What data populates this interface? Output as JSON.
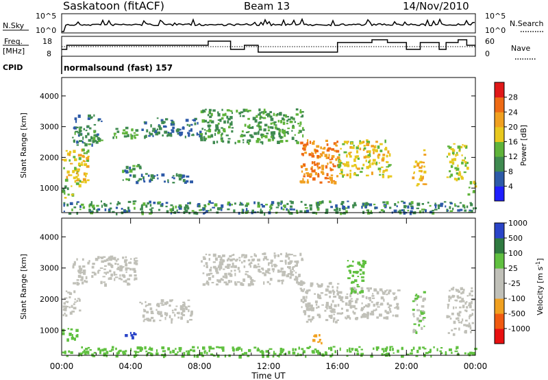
{
  "header": {
    "station": "Saskatoon (fitACF)",
    "beam": "Beam 13",
    "date": "14/Nov/2010"
  },
  "noise_panel": {
    "left_label": "N.Sky",
    "left_ticks": [
      "10^5",
      "10^0"
    ],
    "right_label": "N.Search",
    "right_ticks": [
      "10^5",
      "10^0"
    ]
  },
  "freq_panel": {
    "left_label_line1": "Freq.",
    "left_label_line2": "[MHz]",
    "left_ticks": [
      "18",
      "8"
    ],
    "right_label": "Nave",
    "right_ticks": [
      "60",
      "0"
    ]
  },
  "cpid": {
    "label": "CPID",
    "value": "normalsound (fast) 157"
  },
  "colors": {
    "power_scale": [
      "#1e1eff",
      "#2d5aa8",
      "#3f8a50",
      "#5fb33a",
      "#e8c81e",
      "#f0a020",
      "#ee6a14",
      "#e01818"
    ],
    "velocity_scale": [
      "#e81010",
      "#f05a10",
      "#f0a020",
      "#c0c0b8",
      "#c0c0b8",
      "#60c040",
      "#2f7a40",
      "#2a44c8"
    ]
  },
  "chart_data": [
    {
      "type": "heatmap",
      "name": "power",
      "ylabel": "Slant Range [km]",
      "yticks": [
        "1000",
        "2000",
        "3000",
        "4000"
      ],
      "ylim": [
        200,
        4600
      ],
      "xlim": [
        0,
        24
      ],
      "colorbar_label": "Power [dB]",
      "colorbar_ticks": [
        "4",
        "8",
        "12",
        "16",
        "20",
        "24",
        "28"
      ],
      "echo_bands": [
        {
          "t0": 0.0,
          "t1": 1.5,
          "r0": 1100,
          "r1": 2300,
          "value": 18
        },
        {
          "t0": 0.0,
          "t1": 0.8,
          "r0": 700,
          "r1": 1100,
          "value": 14
        },
        {
          "t0": 0.6,
          "t1": 2.3,
          "r0": 2400,
          "r1": 3400,
          "value": 10
        },
        {
          "t0": 2.8,
          "t1": 4.3,
          "r0": 2600,
          "r1": 3000,
          "value": 12
        },
        {
          "t0": 3.5,
          "t1": 4.5,
          "r0": 1200,
          "r1": 1800,
          "value": 10
        },
        {
          "t0": 4.5,
          "t1": 7.5,
          "r0": 1200,
          "r1": 1500,
          "value": 8
        },
        {
          "t0": 4.5,
          "t1": 8.0,
          "r0": 2700,
          "r1": 3300,
          "value": 8
        },
        {
          "t0": 8.0,
          "t1": 14.0,
          "r0": 2500,
          "r1": 3600,
          "value": 12
        },
        {
          "t0": 13.8,
          "t1": 16.0,
          "r0": 1200,
          "r1": 2600,
          "value": 24
        },
        {
          "t0": 16.0,
          "t1": 19.0,
          "r0": 1400,
          "r1": 2600,
          "value": 18
        },
        {
          "t0": 20.3,
          "t1": 21.0,
          "r0": 1100,
          "r1": 2300,
          "value": 20
        },
        {
          "t0": 22.3,
          "t1": 23.5,
          "r0": 1300,
          "r1": 2500,
          "value": 16
        },
        {
          "t0": 23.5,
          "t1": 24.0,
          "r0": 800,
          "r1": 1300,
          "value": 14
        },
        {
          "t0": 0.0,
          "t1": 24.0,
          "r0": 200,
          "r1": 600,
          "value": 10
        }
      ]
    },
    {
      "type": "heatmap",
      "name": "velocity",
      "ylabel": "Slant Range [km]",
      "yticks": [
        "1000",
        "2000",
        "3000",
        "4000"
      ],
      "ylim": [
        200,
        4600
      ],
      "xlim": [
        0,
        24
      ],
      "colorbar_label": "Velocity [m s^-1]",
      "colorbar_ticks": [
        "-1000",
        "-500",
        "-100",
        "-25",
        "25",
        "100",
        "500",
        "1000"
      ],
      "echo_bands": [
        {
          "t0": 0.0,
          "t1": 1.0,
          "r0": 1500,
          "r1": 2300,
          "value": 0
        },
        {
          "t0": 0.0,
          "t1": 0.9,
          "r0": 700,
          "r1": 1100,
          "value": 100
        },
        {
          "t0": 0.6,
          "t1": 4.3,
          "r0": 2500,
          "r1": 3400,
          "value": 0
        },
        {
          "t0": 3.5,
          "t1": 4.2,
          "r0": 800,
          "r1": 1000,
          "value": 900
        },
        {
          "t0": 4.5,
          "t1": 7.5,
          "r0": 1300,
          "r1": 2000,
          "value": 0
        },
        {
          "t0": 8.0,
          "t1": 14.0,
          "r0": 2500,
          "r1": 3500,
          "value": 0
        },
        {
          "t0": 13.8,
          "t1": 16.0,
          "r0": 1300,
          "r1": 2600,
          "value": 0
        },
        {
          "t0": 14.5,
          "t1": 15.2,
          "r0": 600,
          "r1": 900,
          "value": -200
        },
        {
          "t0": 16.0,
          "t1": 19.5,
          "r0": 1400,
          "r1": 2400,
          "value": 0
        },
        {
          "t0": 16.5,
          "t1": 17.5,
          "r0": 2200,
          "r1": 3300,
          "value": 200
        },
        {
          "t0": 20.3,
          "t1": 21.0,
          "r0": 900,
          "r1": 2300,
          "value": 60
        },
        {
          "t0": 22.3,
          "t1": 23.8,
          "r0": 900,
          "r1": 2400,
          "value": 0
        },
        {
          "t0": 0.0,
          "t1": 24.0,
          "r0": 200,
          "r1": 500,
          "value": 80
        }
      ]
    }
  ],
  "time_axis": {
    "ticks": [
      "00:00",
      "04:00",
      "08:00",
      "12:00",
      "16:00",
      "20:00",
      "00:00"
    ],
    "label": "Time UT"
  }
}
